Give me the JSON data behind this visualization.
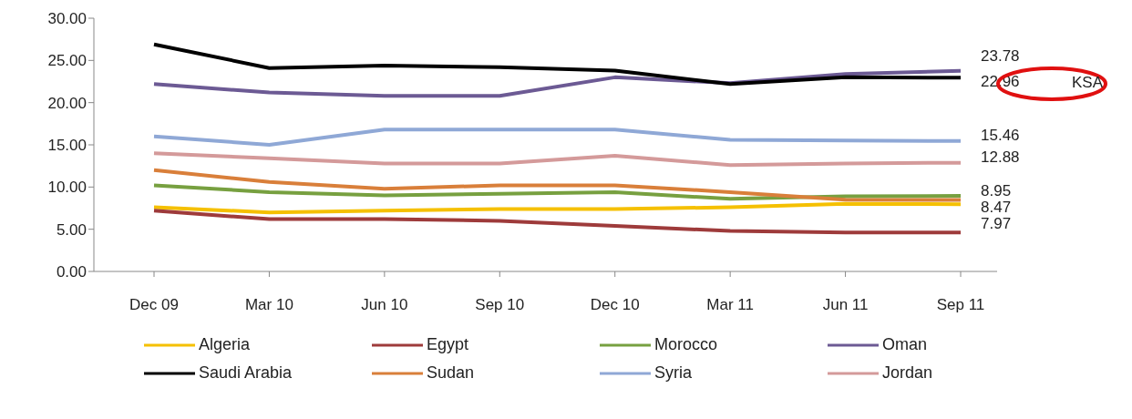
{
  "chart_data": {
    "type": "line",
    "categories": [
      "Dec 09",
      "Mar 10",
      "Jun 10",
      "Sep 10",
      "Dec 10",
      "Mar 11",
      "Jun 11",
      "Sep 11"
    ],
    "ylim": [
      0,
      30
    ],
    "yticks": [
      {
        "value": 0,
        "label": "0.00"
      },
      {
        "value": 5,
        "label": "5.00"
      },
      {
        "value": 10,
        "label": "10.00"
      },
      {
        "value": 15,
        "label": "15.00"
      },
      {
        "value": 20,
        "label": "20.00"
      },
      {
        "value": 25,
        "label": "25.00"
      },
      {
        "value": 30,
        "label": "30.00"
      }
    ],
    "grid": false,
    "legend": "bottom",
    "marker": "none",
    "line_style": "solid",
    "series": [
      {
        "name": "Algeria",
        "color": "#f5c000",
        "values": [
          7.6,
          7.0,
          7.2,
          7.4,
          7.4,
          7.6,
          8.0,
          7.97
        ],
        "value_labels": [
          null,
          null,
          null,
          null,
          null,
          null,
          null,
          "7.97"
        ]
      },
      {
        "name": "Egypt",
        "color": "#9e3b3b",
        "values": [
          7.2,
          6.2,
          6.2,
          6.0,
          5.4,
          4.8,
          4.6,
          4.6
        ]
      },
      {
        "name": "Morocco",
        "color": "#77a040",
        "values": [
          10.2,
          9.4,
          9.0,
          9.2,
          9.4,
          8.6,
          8.9,
          8.95
        ],
        "value_labels": [
          null,
          null,
          null,
          null,
          null,
          null,
          null,
          "8.95"
        ]
      },
      {
        "name": "Oman",
        "color": "#6c5a94",
        "values": [
          22.2,
          21.2,
          20.8,
          20.8,
          23.0,
          22.3,
          23.4,
          23.78
        ],
        "value_labels": [
          null,
          null,
          null,
          null,
          null,
          null,
          null,
          "23.78"
        ]
      },
      {
        "name": "Saudi Arabia",
        "color": "#000000",
        "values": [
          26.9,
          24.1,
          24.4,
          24.2,
          23.8,
          22.2,
          23.0,
          22.96
        ],
        "value_labels": [
          null,
          null,
          null,
          null,
          null,
          null,
          null,
          "22.96"
        ]
      },
      {
        "name": "Sudan",
        "color": "#d97f3a",
        "values": [
          12.0,
          10.6,
          9.8,
          10.2,
          10.2,
          9.4,
          8.5,
          8.47
        ],
        "value_labels": [
          null,
          null,
          null,
          null,
          null,
          null,
          null,
          "8.47"
        ]
      },
      {
        "name": "Syria",
        "color": "#8fa8d6",
        "values": [
          16.0,
          15.0,
          16.8,
          16.8,
          16.8,
          15.6,
          15.5,
          15.46
        ],
        "value_labels": [
          null,
          null,
          null,
          null,
          null,
          null,
          null,
          "15.46"
        ]
      },
      {
        "name": "Jordan",
        "color": "#d49a9a",
        "values": [
          14.0,
          13.4,
          12.8,
          12.8,
          13.7,
          12.6,
          12.8,
          12.88
        ],
        "value_labels": [
          null,
          null,
          null,
          null,
          null,
          null,
          null,
          "12.88"
        ]
      }
    ],
    "annotations": [
      "KSA"
    ]
  }
}
